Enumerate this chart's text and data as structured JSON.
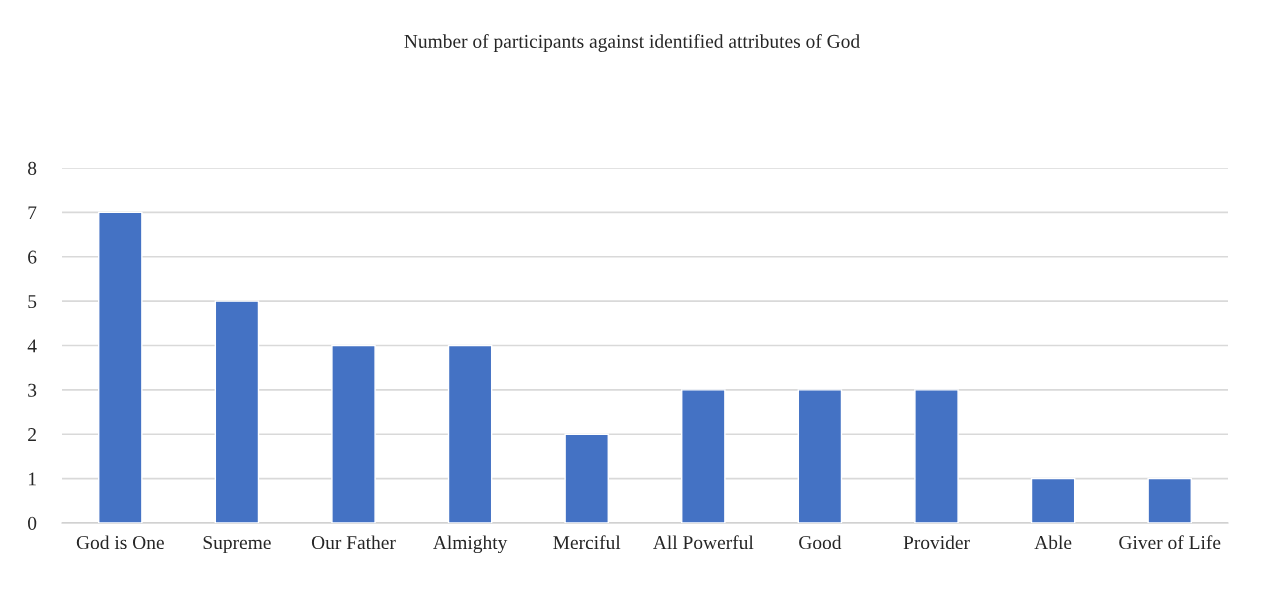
{
  "chart_data": {
    "type": "bar",
    "title": "Number of participants against identified attributes of God",
    "categories": [
      "God is One",
      "Supreme",
      "Our Father",
      "Almighty",
      "Merciful",
      "All Powerful",
      "Good",
      "Provider",
      "Able",
      "Giver of Life"
    ],
    "values": [
      7,
      5,
      4,
      4,
      2,
      3,
      3,
      3,
      1,
      1
    ],
    "color": "#4472c4",
    "ylim": [
      0,
      8
    ],
    "yticks": [
      0,
      1,
      2,
      3,
      4,
      5,
      6,
      7,
      8
    ],
    "grid": "y",
    "legend": false
  }
}
